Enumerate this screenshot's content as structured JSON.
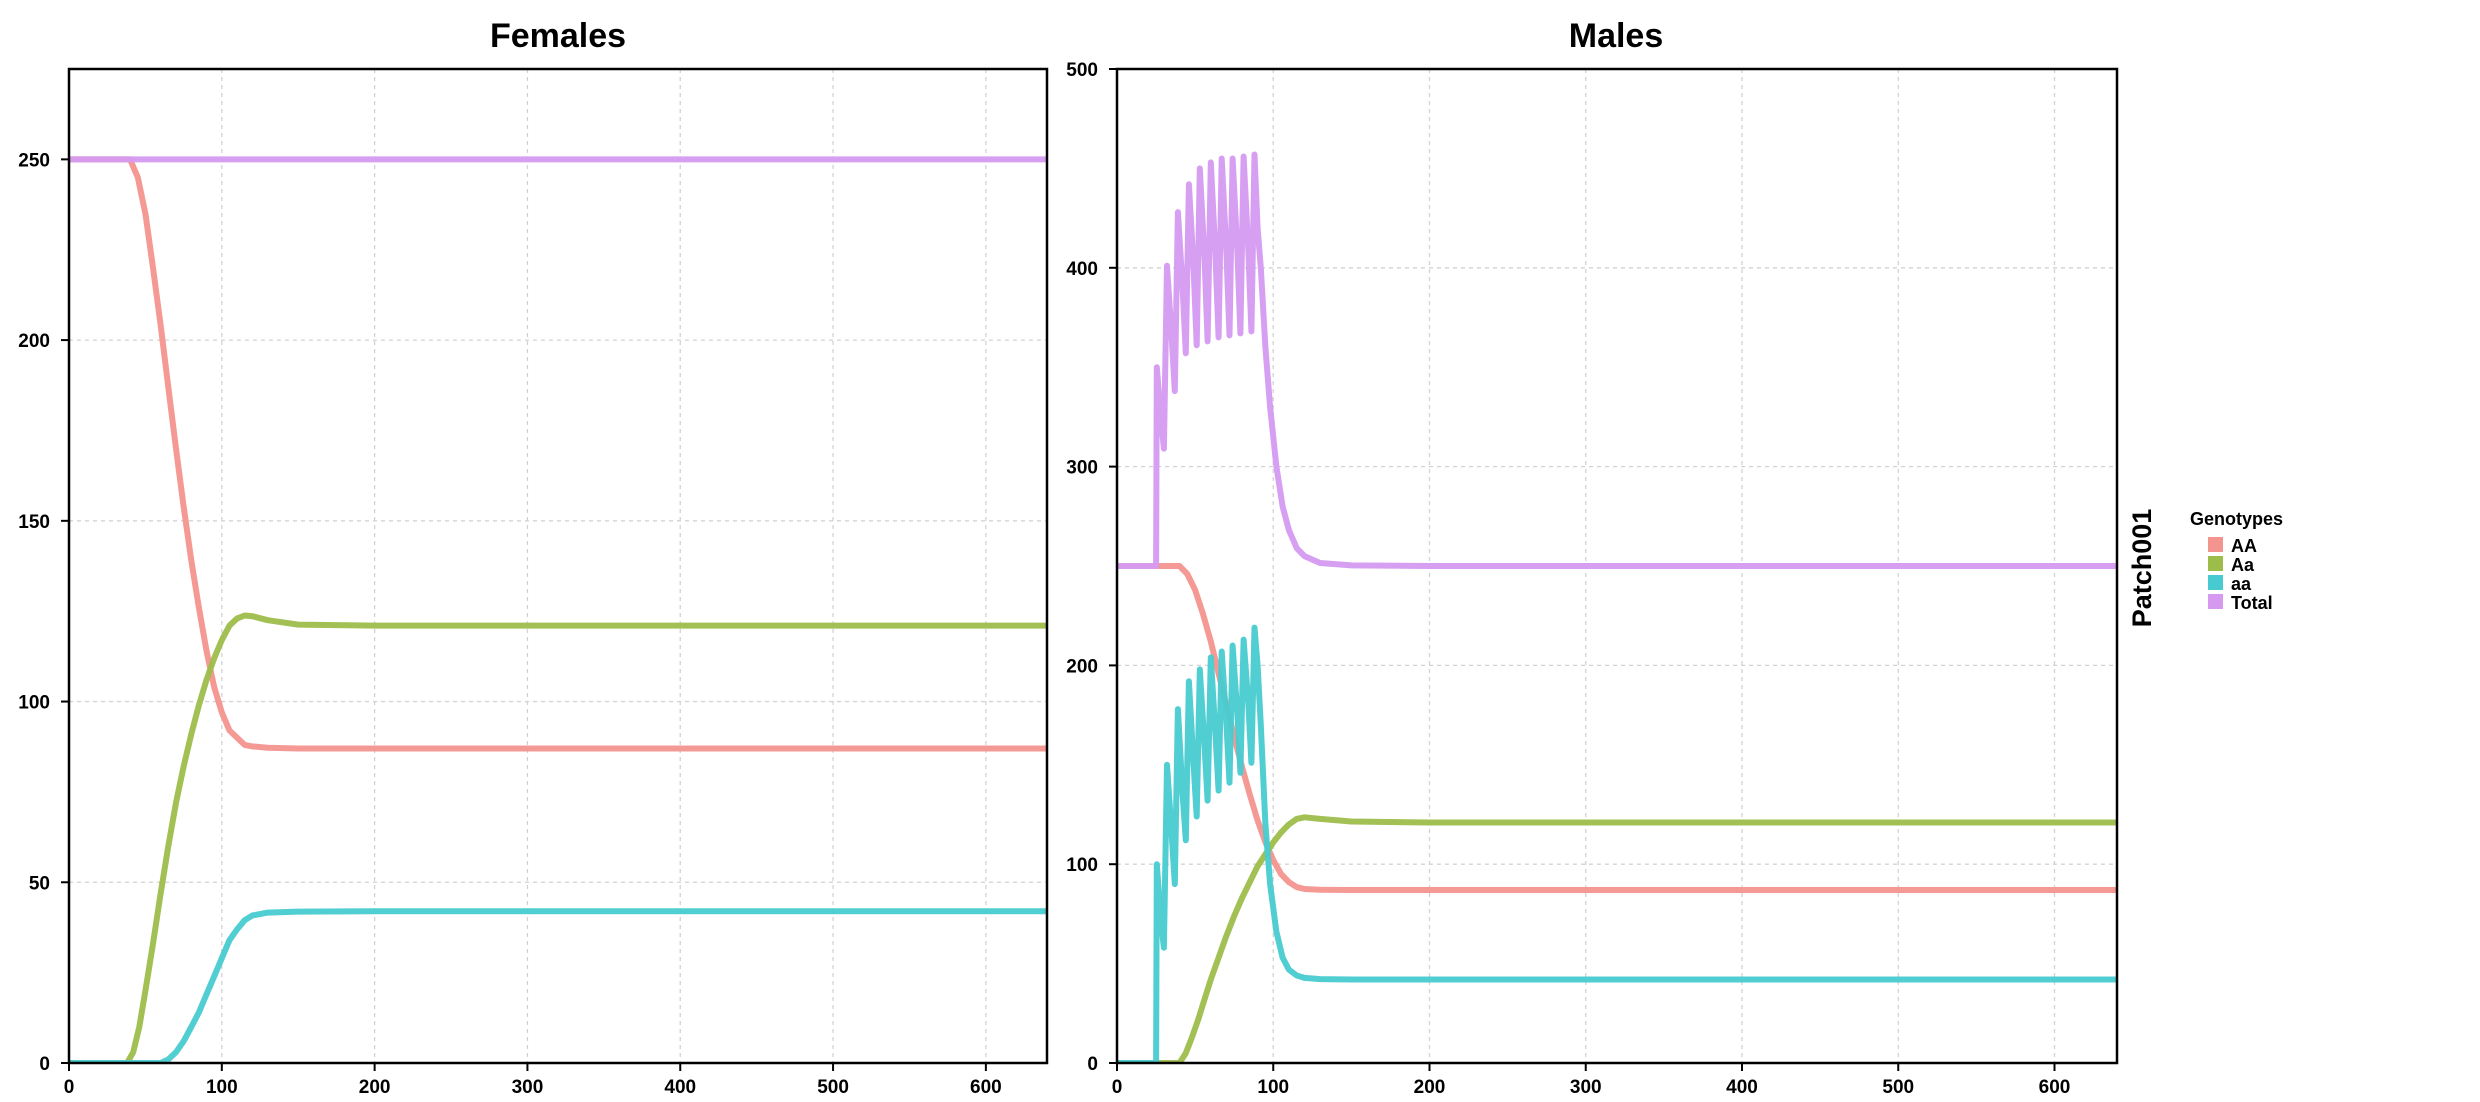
{
  "chart_data": [
    {
      "type": "line",
      "title": "Females",
      "xlim": [
        0,
        640
      ],
      "ylim": [
        0,
        275
      ],
      "x_ticks": [
        0,
        100,
        200,
        300,
        400,
        500,
        600
      ],
      "y_ticks": [
        0,
        50,
        100,
        150,
        200,
        250
      ],
      "series": [
        {
          "name": "AA",
          "color": "#f4948e",
          "points": [
            [
              0,
              250
            ],
            [
              40,
              250
            ],
            [
              45,
              245
            ],
            [
              50,
              235
            ],
            [
              55,
              220
            ],
            [
              60,
              204
            ],
            [
              65,
              187
            ],
            [
              70,
              170
            ],
            [
              75,
              154
            ],
            [
              80,
              139
            ],
            [
              85,
              126
            ],
            [
              90,
              114
            ],
            [
              95,
              104
            ],
            [
              100,
              97
            ],
            [
              105,
              92
            ],
            [
              110,
              90
            ],
            [
              115,
              88
            ],
            [
              120,
              87.6
            ],
            [
              130,
              87.2
            ],
            [
              150,
              87
            ],
            [
              200,
              87
            ],
            [
              640,
              87
            ]
          ]
        },
        {
          "name": "Aa",
          "color": "#9dbd4a",
          "points": [
            [
              0,
              0
            ],
            [
              38,
              0
            ],
            [
              42,
              3
            ],
            [
              46,
              10
            ],
            [
              50,
              20
            ],
            [
              55,
              33
            ],
            [
              60,
              47
            ],
            [
              65,
              60
            ],
            [
              70,
              72
            ],
            [
              75,
              82
            ],
            [
              80,
              91
            ],
            [
              85,
              99
            ],
            [
              90,
              106
            ],
            [
              95,
              112
            ],
            [
              100,
              117
            ],
            [
              105,
              121
            ],
            [
              110,
              123
            ],
            [
              115,
              123.8
            ],
            [
              120,
              123.6
            ],
            [
              130,
              122.5
            ],
            [
              150,
              121.3
            ],
            [
              200,
              121
            ],
            [
              640,
              121
            ]
          ]
        },
        {
          "name": "aa",
          "color": "#47cbd0",
          "points": [
            [
              0,
              0
            ],
            [
              60,
              0
            ],
            [
              65,
              1
            ],
            [
              70,
              3
            ],
            [
              75,
              6
            ],
            [
              80,
              10
            ],
            [
              85,
              14
            ],
            [
              90,
              19
            ],
            [
              95,
              24
            ],
            [
              100,
              29
            ],
            [
              105,
              34
            ],
            [
              110,
              37
            ],
            [
              115,
              39.5
            ],
            [
              120,
              40.8
            ],
            [
              130,
              41.6
            ],
            [
              150,
              41.9
            ],
            [
              200,
              42
            ],
            [
              640,
              42
            ]
          ]
        },
        {
          "name": "Total",
          "color": "#d59af0",
          "points": [
            [
              0,
              250
            ],
            [
              640,
              250
            ]
          ]
        }
      ]
    },
    {
      "type": "line",
      "title": "Males",
      "xlim": [
        0,
        640
      ],
      "ylim": [
        0,
        500
      ],
      "x_ticks": [
        0,
        100,
        200,
        300,
        400,
        500,
        600
      ],
      "y_ticks": [
        0,
        100,
        200,
        300,
        400,
        500
      ],
      "series": [
        {
          "name": "AA",
          "color": "#f4948e",
          "points": [
            [
              0,
              250
            ],
            [
              40,
              250
            ],
            [
              45,
              246
            ],
            [
              50,
              238
            ],
            [
              55,
              226
            ],
            [
              60,
              212
            ],
            [
              65,
              196
            ],
            [
              70,
              180
            ],
            [
              75,
              164
            ],
            [
              80,
              149
            ],
            [
              85,
              135
            ],
            [
              90,
              122
            ],
            [
              95,
              111
            ],
            [
              100,
              102
            ],
            [
              105,
              95
            ],
            [
              110,
              91
            ],
            [
              115,
              88.5
            ],
            [
              120,
              87.5
            ],
            [
              130,
              87.1
            ],
            [
              150,
              87
            ],
            [
              640,
              87
            ]
          ]
        },
        {
          "name": "Aa",
          "color": "#9dbd4a",
          "points": [
            [
              0,
              0
            ],
            [
              40,
              0
            ],
            [
              44,
              5
            ],
            [
              48,
              13
            ],
            [
              52,
              22
            ],
            [
              56,
              32
            ],
            [
              60,
              42
            ],
            [
              65,
              53
            ],
            [
              70,
              64
            ],
            [
              75,
              74
            ],
            [
              80,
              83
            ],
            [
              85,
              91
            ],
            [
              90,
              99
            ],
            [
              95,
              105
            ],
            [
              100,
              111
            ],
            [
              105,
              116
            ],
            [
              110,
              120
            ],
            [
              115,
              122.8
            ],
            [
              120,
              123.6
            ],
            [
              130,
              122.8
            ],
            [
              150,
              121.5
            ],
            [
              200,
              121
            ],
            [
              640,
              121
            ]
          ]
        },
        {
          "name": "aa",
          "color": "#47cbd0",
          "points": [
            [
              0,
              0
            ],
            [
              25,
              0
            ],
            [
              25.5,
              100
            ],
            [
              28,
              72
            ],
            [
              30,
              58
            ],
            [
              32,
              150
            ],
            [
              35,
              115
            ],
            [
              37,
              90
            ],
            [
              39,
              178
            ],
            [
              42,
              135
            ],
            [
              44,
              112
            ],
            [
              46,
              192
            ],
            [
              49,
              150
            ],
            [
              51,
              124
            ],
            [
              53,
              198
            ],
            [
              56,
              160
            ],
            [
              58,
              132
            ],
            [
              60,
              204
            ],
            [
              63,
              166
            ],
            [
              65,
              137
            ],
            [
              67,
              207
            ],
            [
              70,
              171
            ],
            [
              72,
              141
            ],
            [
              74,
              210
            ],
            [
              77,
              176
            ],
            [
              79,
              146
            ],
            [
              81,
              213
            ],
            [
              84,
              181
            ],
            [
              86,
              151
            ],
            [
              88,
              219
            ],
            [
              90,
              200
            ],
            [
              92,
              170
            ],
            [
              95,
              120
            ],
            [
              98,
              90
            ],
            [
              102,
              66
            ],
            [
              106,
              53
            ],
            [
              110,
              47
            ],
            [
              115,
              44
            ],
            [
              120,
              42.8
            ],
            [
              130,
              42.2
            ],
            [
              150,
              42
            ],
            [
              640,
              42
            ]
          ]
        },
        {
          "name": "Total",
          "color": "#d59af0",
          "points": [
            [
              0,
              250
            ],
            [
              25,
              250
            ],
            [
              25.5,
              350
            ],
            [
              28,
              325
            ],
            [
              30,
              309
            ],
            [
              32,
              401
            ],
            [
              35,
              365
            ],
            [
              37,
              338
            ],
            [
              39,
              428
            ],
            [
              42,
              390
            ],
            [
              44,
              357
            ],
            [
              46,
              442
            ],
            [
              49,
              400
            ],
            [
              51,
              361
            ],
            [
              53,
              450
            ],
            [
              56,
              405
            ],
            [
              58,
              363
            ],
            [
              60,
              453
            ],
            [
              63,
              407
            ],
            [
              65,
              365
            ],
            [
              67,
              455
            ],
            [
              70,
              408
            ],
            [
              72,
              366
            ],
            [
              74,
              455
            ],
            [
              77,
              409
            ],
            [
              79,
              367
            ],
            [
              81,
              456
            ],
            [
              84,
              409
            ],
            [
              86,
              368
            ],
            [
              88,
              457
            ],
            [
              90,
              420
            ],
            [
              92,
              400
            ],
            [
              95,
              360
            ],
            [
              98,
              330
            ],
            [
              102,
              300
            ],
            [
              106,
              280
            ],
            [
              110,
              268
            ],
            [
              115,
              259
            ],
            [
              120,
              255
            ],
            [
              130,
              251.5
            ],
            [
              150,
              250.3
            ],
            [
              200,
              250
            ],
            [
              640,
              250
            ]
          ]
        }
      ]
    }
  ],
  "strip": {
    "label": "Patch001"
  },
  "legend": {
    "title": "Genotypes",
    "items": [
      {
        "label": "AA",
        "color": "#f4948e"
      },
      {
        "label": "Aa",
        "color": "#9dbd4a"
      },
      {
        "label": "aa",
        "color": "#47cbd0"
      },
      {
        "label": "Total",
        "color": "#d59af0"
      }
    ]
  }
}
